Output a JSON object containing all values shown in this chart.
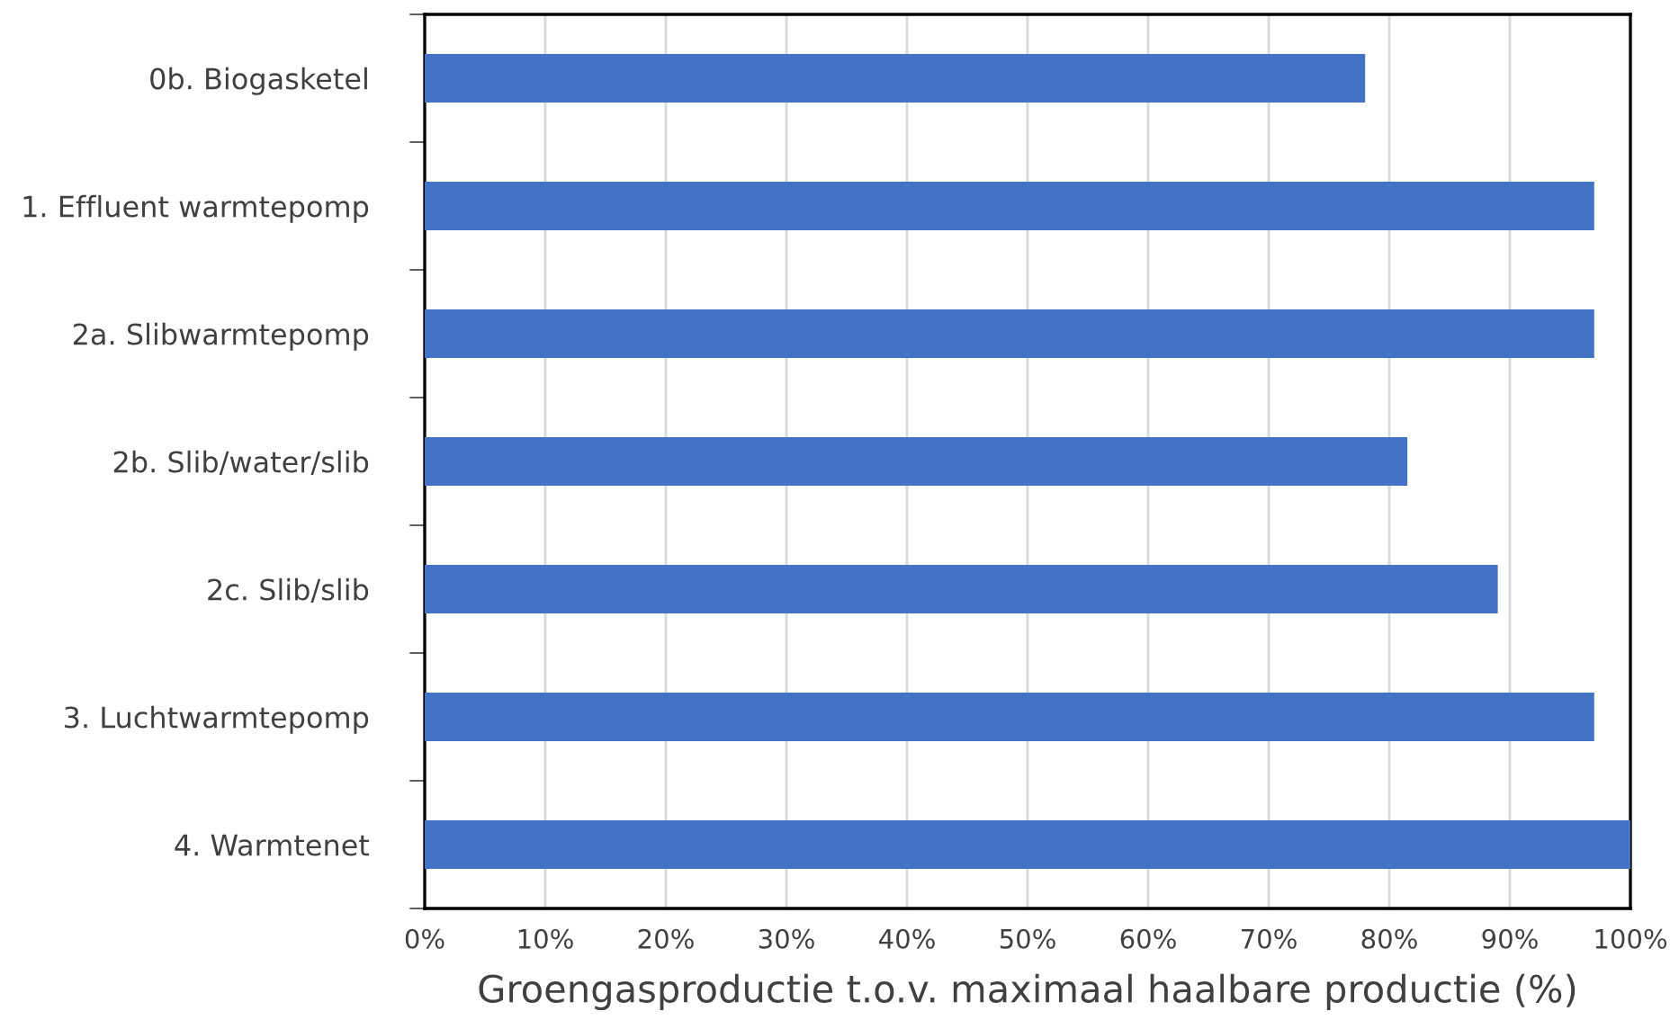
{
  "chart_data": {
    "type": "bar",
    "orientation": "horizontal",
    "categories": [
      "0b. Biogasketel",
      "1. Effluent warmtepomp",
      "2a. Slibwarmtepomp",
      "2b. Slib/water/slib",
      "2c. Slib/slib",
      "3. Luchtwarmtepomp",
      "4. Warmtenet"
    ],
    "series": [
      {
        "color": "#4472c4",
        "values": [
          78,
          97,
          97,
          81.5,
          89,
          97,
          100
        ]
      }
    ],
    "xlabel": "Groengasproductie t.o.v. maximaal haalbare productie (%)",
    "xlim": [
      0,
      100
    ],
    "xticks": [
      {
        "value": 0,
        "label": "0%"
      },
      {
        "value": 10,
        "label": "10%"
      },
      {
        "value": 20,
        "label": "20%"
      },
      {
        "value": 30,
        "label": "30%"
      },
      {
        "value": 40,
        "label": "40%"
      },
      {
        "value": 50,
        "label": "50%"
      },
      {
        "value": 60,
        "label": "60%"
      },
      {
        "value": 70,
        "label": "70%"
      },
      {
        "value": 80,
        "label": "80%"
      },
      {
        "value": 90,
        "label": "90%"
      },
      {
        "value": 100,
        "label": "100%"
      }
    ],
    "grid": "x",
    "legend": false
  }
}
